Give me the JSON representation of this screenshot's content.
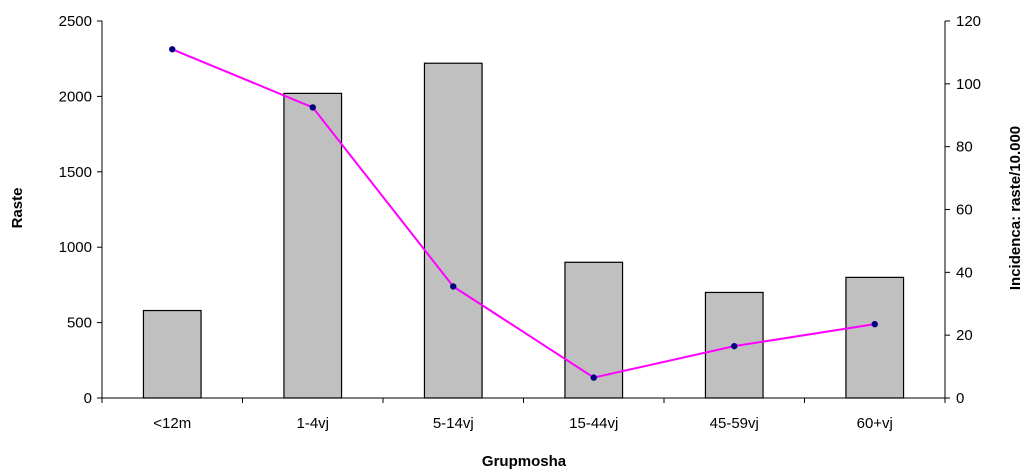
{
  "chart_data": {
    "type": "bar",
    "categories": [
      "<12m",
      "1-4vj",
      "5-14vj",
      "15-44vj",
      "45-59vj",
      "60+vj"
    ],
    "series": [
      {
        "name": "",
        "type": "bar",
        "axis": "left",
        "values": [
          580,
          2020,
          2220,
          900,
          700,
          800
        ],
        "color": "#c0c0c0"
      },
      {
        "name": "",
        "type": "line",
        "axis": "right",
        "values": [
          111,
          92.5,
          35.5,
          6.5,
          16.5,
          23.5
        ],
        "color": "#ff00ff",
        "marker_color": "#000080"
      }
    ],
    "title": "",
    "xlabel": "Grupmosha",
    "ylabel": "Raste",
    "y2label": "Incidenca: raste/10.000",
    "ylim": [
      0,
      2500
    ],
    "y2lim": [
      0,
      120
    ],
    "yticks": [
      0,
      500,
      1000,
      1500,
      2000,
      2500
    ],
    "y2ticks": [
      0,
      20,
      40,
      60,
      80,
      100,
      120
    ],
    "grid": false,
    "legend": "none"
  }
}
